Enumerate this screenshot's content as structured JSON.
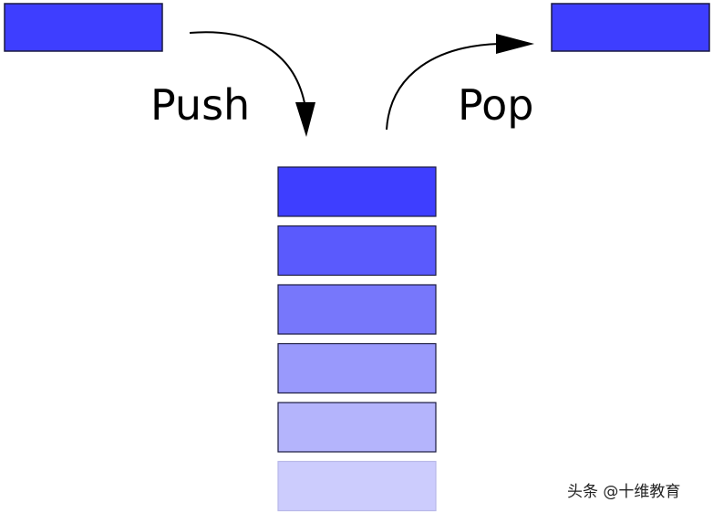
{
  "labels": {
    "push": "Push",
    "pop": "Pop"
  },
  "colors": {
    "incoming_block": "#3e3eff",
    "outgoing_block": "#3e3eff",
    "block_border": "#1a1a40",
    "arrow": "#000000"
  },
  "stack": {
    "blocks": [
      {
        "position": "top",
        "color": "#3e3eff"
      },
      {
        "position": "second",
        "color": "#5a5afd"
      },
      {
        "position": "third",
        "color": "#7777fb"
      },
      {
        "position": "fourth",
        "color": "#9999fc"
      },
      {
        "position": "fifth",
        "color": "#b4b4fc"
      },
      {
        "position": "bottom",
        "color": "#ccccfd"
      }
    ]
  },
  "watermark": "头条 @十维教育"
}
